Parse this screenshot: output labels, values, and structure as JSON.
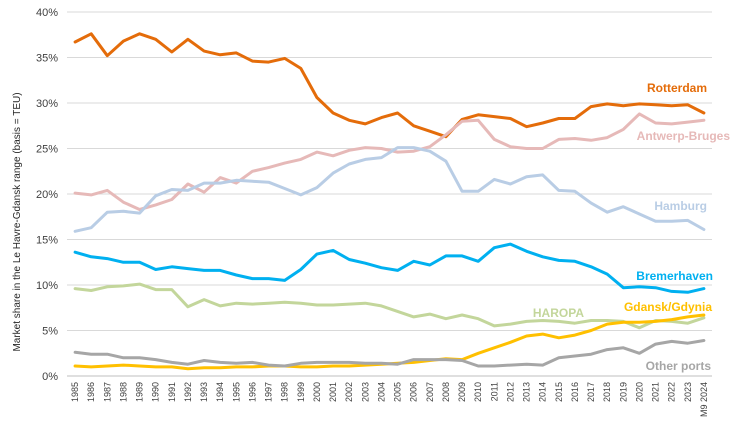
{
  "chart_data": {
    "type": "line",
    "title": "",
    "xlabel": "",
    "ylabel": "Market share in the Le Havre-Gdansk range (basis = TEU)",
    "ylim": [
      0,
      40
    ],
    "yticks": [
      0,
      5,
      10,
      15,
      20,
      25,
      30,
      35,
      40
    ],
    "ytick_labels": [
      "0%",
      "5%",
      "10%",
      "15%",
      "20%",
      "25%",
      "30%",
      "35%",
      "40%"
    ],
    "grid": true,
    "categories": [
      "1985",
      "1986",
      "1987",
      "1988",
      "1989",
      "1990",
      "1991",
      "1992",
      "1993",
      "1994",
      "1995",
      "1996",
      "1997",
      "1998",
      "1999",
      "2000",
      "2001",
      "2002",
      "2003",
      "2004",
      "2005",
      "2006",
      "2007",
      "2008",
      "2009",
      "2010",
      "2011",
      "2012",
      "2013",
      "2014",
      "2015",
      "2016",
      "2017",
      "2018",
      "2019",
      "2020",
      "2021",
      "2022",
      "2023",
      "M9 2024"
    ],
    "series": [
      {
        "name": "Rotterdam",
        "color": "#e46c0a",
        "values": [
          36.7,
          37.6,
          35.2,
          36.8,
          37.6,
          37.0,
          35.6,
          37.0,
          35.7,
          35.3,
          35.5,
          34.6,
          34.5,
          34.9,
          33.8,
          30.6,
          28.9,
          28.1,
          27.7,
          28.4,
          28.9,
          27.5,
          26.9,
          26.3,
          28.2,
          28.7,
          28.5,
          28.3,
          27.4,
          27.8,
          28.3,
          28.3,
          29.6,
          29.9,
          29.7,
          29.9,
          29.8,
          29.7,
          29.8,
          28.9
        ]
      },
      {
        "name": "Antwerp-Bruges",
        "color": "#e6b9b8",
        "values": [
          20.1,
          19.9,
          20.4,
          19.1,
          18.3,
          18.8,
          19.4,
          21.1,
          20.2,
          21.8,
          21.2,
          22.5,
          22.9,
          23.4,
          23.8,
          24.6,
          24.2,
          24.8,
          25.1,
          25.0,
          24.6,
          24.7,
          25.2,
          26.5,
          28.0,
          28.1,
          26.0,
          25.2,
          25.0,
          25.0,
          26.0,
          26.1,
          25.9,
          26.2,
          27.1,
          28.8,
          27.8,
          27.7,
          27.9,
          28.1
        ]
      },
      {
        "name": "Hamburg",
        "color": "#b9cde5",
        "values": [
          15.9,
          16.3,
          18.0,
          18.1,
          17.9,
          19.8,
          20.5,
          20.4,
          21.2,
          21.2,
          21.5,
          21.4,
          21.3,
          20.6,
          19.9,
          20.7,
          22.3,
          23.3,
          23.8,
          24.0,
          25.1,
          25.1,
          24.7,
          23.6,
          20.3,
          20.3,
          21.6,
          21.1,
          21.9,
          22.1,
          20.4,
          20.3,
          19.0,
          18.0,
          18.6,
          17.8,
          17.0,
          17.0,
          17.1,
          16.1
        ]
      },
      {
        "name": "Bremerhaven",
        "color": "#00b0f0",
        "values": [
          13.6,
          13.1,
          12.9,
          12.5,
          12.5,
          11.7,
          12.0,
          11.8,
          11.6,
          11.6,
          11.1,
          10.7,
          10.7,
          10.5,
          11.7,
          13.4,
          13.8,
          12.8,
          12.4,
          11.9,
          11.6,
          12.6,
          12.2,
          13.2,
          13.2,
          12.6,
          14.1,
          14.5,
          13.7,
          13.1,
          12.7,
          12.6,
          12.0,
          11.2,
          9.7,
          9.8,
          9.7,
          9.3,
          9.2,
          9.6
        ]
      },
      {
        "name": "HAROPA",
        "color": "#c3d69b",
        "values": [
          9.6,
          9.4,
          9.8,
          9.9,
          10.1,
          9.5,
          9.5,
          7.6,
          8.4,
          7.7,
          8.0,
          7.9,
          8.0,
          8.1,
          8.0,
          7.8,
          7.8,
          7.9,
          8.0,
          7.7,
          7.1,
          6.5,
          6.8,
          6.3,
          6.7,
          6.3,
          5.5,
          5.7,
          6.0,
          6.1,
          6.0,
          5.8,
          6.1,
          6.1,
          6.0,
          5.3,
          6.1,
          6.0,
          5.8,
          6.4
        ]
      },
      {
        "name": "Gdansk/Gdynia",
        "color": "#ffc000",
        "values": [
          1.1,
          1.0,
          1.1,
          1.2,
          1.1,
          1.0,
          1.0,
          0.8,
          0.9,
          0.9,
          1.0,
          1.0,
          1.1,
          1.1,
          1.0,
          1.0,
          1.1,
          1.1,
          1.2,
          1.3,
          1.4,
          1.5,
          1.7,
          1.9,
          1.8,
          2.5,
          3.1,
          3.7,
          4.4,
          4.6,
          4.2,
          4.5,
          5.0,
          5.7,
          5.9,
          5.9,
          6.0,
          6.2,
          6.5,
          6.7
        ]
      },
      {
        "name": "Other ports",
        "color": "#a6a6a6",
        "values": [
          2.6,
          2.4,
          2.4,
          2.0,
          2.0,
          1.8,
          1.5,
          1.3,
          1.7,
          1.5,
          1.4,
          1.5,
          1.2,
          1.1,
          1.4,
          1.5,
          1.5,
          1.5,
          1.4,
          1.4,
          1.3,
          1.8,
          1.8,
          1.8,
          1.7,
          1.1,
          1.1,
          1.2,
          1.3,
          1.2,
          2.0,
          2.2,
          2.4,
          2.9,
          3.1,
          2.5,
          3.5,
          3.8,
          3.6,
          3.9
        ]
      }
    ]
  }
}
